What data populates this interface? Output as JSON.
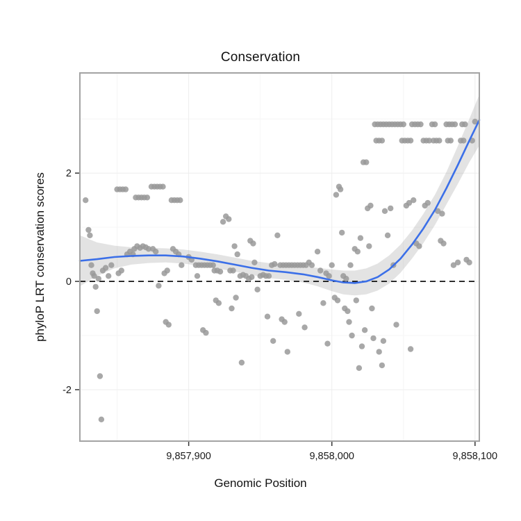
{
  "chart_data": {
    "type": "scatter",
    "title": "Conservation",
    "xlabel": "Genomic Position",
    "ylabel": "phyloP LRT conservation scores",
    "x_domain": [
      9857824,
      9858103
    ],
    "y_domain": [
      -2.95,
      3.85
    ],
    "x_ticks": [
      {
        "value": 9857900,
        "label": "9,857,900"
      },
      {
        "value": 9858000,
        "label": "9,858,000"
      },
      {
        "value": 9858100,
        "label": "9,858,100"
      }
    ],
    "y_ticks": [
      {
        "value": -2,
        "label": "-2"
      },
      {
        "value": 0,
        "label": "0"
      },
      {
        "value": 2,
        "label": "2"
      }
    ],
    "x_minor": [
      9857850,
      9857950,
      9858050
    ],
    "y_minor": [
      -1,
      1,
      3
    ],
    "zero_line_y": 0,
    "style": {
      "panel_fill": "#ffffff",
      "panel_border": "#a3a3a3",
      "grid_major": "#ededed",
      "grid_minor": "#f6f6f6",
      "point_color": "#999999",
      "line_color": "#3b6fe8",
      "band_color": "#9b9b9b",
      "zero_line_color": "#000000",
      "tick_color": "#333333"
    },
    "points": [
      [
        9857828,
        1.5
      ],
      [
        9857830,
        0.95
      ],
      [
        9857831,
        0.85
      ],
      [
        9857832,
        0.3
      ],
      [
        9857833,
        0.15
      ],
      [
        9857834,
        0.1
      ],
      [
        9857835,
        -0.1
      ],
      [
        9857836,
        -0.55
      ],
      [
        9857837,
        0.05
      ],
      [
        9857838,
        -1.75
      ],
      [
        9857839,
        -2.55
      ],
      [
        9857840,
        0.2
      ],
      [
        9857842,
        0.25
      ],
      [
        9857844,
        0.1
      ],
      [
        9857846,
        0.3
      ],
      [
        9857850,
        1.7
      ],
      [
        9857852,
        1.7
      ],
      [
        9857854,
        1.7
      ],
      [
        9857856,
        1.7
      ],
      [
        9857851,
        0.15
      ],
      [
        9857853,
        0.2
      ],
      [
        9857857,
        0.5
      ],
      [
        9857859,
        0.55
      ],
      [
        9857861,
        0.5
      ],
      [
        9857862,
        0.6
      ],
      [
        9857864,
        0.65
      ],
      [
        9857866,
        0.62
      ],
      [
        9857868,
        0.65
      ],
      [
        9857870,
        0.63
      ],
      [
        9857872,
        0.6
      ],
      [
        9857863,
        1.55
      ],
      [
        9857865,
        1.55
      ],
      [
        9857867,
        1.55
      ],
      [
        9857869,
        1.55
      ],
      [
        9857871,
        1.55
      ],
      [
        9857874,
        1.75
      ],
      [
        9857876,
        1.75
      ],
      [
        9857878,
        1.75
      ],
      [
        9857880,
        1.75
      ],
      [
        9857882,
        1.75
      ],
      [
        9857875,
        0.6
      ],
      [
        9857877,
        0.55
      ],
      [
        9857879,
        -0.08
      ],
      [
        9857883,
        0.15
      ],
      [
        9857885,
        0.2
      ],
      [
        9857884,
        -0.75
      ],
      [
        9857886,
        -0.8
      ],
      [
        9857888,
        1.5
      ],
      [
        9857890,
        1.5
      ],
      [
        9857892,
        1.5
      ],
      [
        9857894,
        1.5
      ],
      [
        9857889,
        0.6
      ],
      [
        9857891,
        0.55
      ],
      [
        9857893,
        0.5
      ],
      [
        9857895,
        0.3
      ],
      [
        9857900,
        0.45
      ],
      [
        9857902,
        0.4
      ],
      [
        9857905,
        0.3
      ],
      [
        9857907,
        0.3
      ],
      [
        9857909,
        0.3
      ],
      [
        9857911,
        0.3
      ],
      [
        9857913,
        0.3
      ],
      [
        9857915,
        0.3
      ],
      [
        9857917,
        0.3
      ],
      [
        9857906,
        0.1
      ],
      [
        9857910,
        -0.9
      ],
      [
        9857912,
        -0.95
      ],
      [
        9857918,
        0.2
      ],
      [
        9857920,
        0.2
      ],
      [
        9857922,
        0.18
      ],
      [
        9857919,
        -0.35
      ],
      [
        9857921,
        -0.4
      ],
      [
        9857924,
        1.1
      ],
      [
        9857926,
        1.2
      ],
      [
        9857928,
        1.15
      ],
      [
        9857929,
        0.2
      ],
      [
        9857931,
        0.2
      ],
      [
        9857930,
        -0.5
      ],
      [
        9857932,
        0.65
      ],
      [
        9857934,
        0.5
      ],
      [
        9857933,
        -0.3
      ],
      [
        9857936,
        0.1
      ],
      [
        9857938,
        0.12
      ],
      [
        9857940,
        0.1
      ],
      [
        9857937,
        -1.5
      ],
      [
        9857942,
        0.05
      ],
      [
        9857944,
        0.08
      ],
      [
        9857943,
        0.75
      ],
      [
        9857945,
        0.7
      ],
      [
        9857946,
        0.35
      ],
      [
        9857948,
        -0.15
      ],
      [
        9857950,
        0.1
      ],
      [
        9857952,
        0.12
      ],
      [
        9857954,
        0.1
      ],
      [
        9857956,
        0.1
      ],
      [
        9857955,
        -0.65
      ],
      [
        9857958,
        0.3
      ],
      [
        9857960,
        0.32
      ],
      [
        9857959,
        -1.1
      ],
      [
        9857962,
        0.85
      ],
      [
        9857964,
        0.3
      ],
      [
        9857966,
        0.3
      ],
      [
        9857968,
        0.3
      ],
      [
        9857970,
        0.3
      ],
      [
        9857972,
        0.3
      ],
      [
        9857974,
        0.3
      ],
      [
        9857976,
        0.3
      ],
      [
        9857978,
        0.3
      ],
      [
        9857980,
        0.3
      ],
      [
        9857982,
        0.3
      ],
      [
        9857965,
        -0.7
      ],
      [
        9857967,
        -0.75
      ],
      [
        9857969,
        -1.3
      ],
      [
        9857977,
        -0.6
      ],
      [
        9857981,
        -0.85
      ],
      [
        9857984,
        0.35
      ],
      [
        9857986,
        0.3
      ],
      [
        9857990,
        0.55
      ],
      [
        9857992,
        0.2
      ],
      [
        9857994,
        -0.4
      ],
      [
        9857996,
        0.15
      ],
      [
        9857998,
        0.1
      ],
      [
        9857997,
        -1.15
      ],
      [
        9858000,
        0.3
      ],
      [
        9858002,
        -0.3
      ],
      [
        9858004,
        -0.35
      ],
      [
        9858003,
        1.6
      ],
      [
        9858005,
        1.75
      ],
      [
        9858006,
        1.7
      ],
      [
        9858007,
        0.9
      ],
      [
        9858008,
        0.1
      ],
      [
        9858010,
        0.05
      ],
      [
        9858009,
        -0.5
      ],
      [
        9858011,
        -0.55
      ],
      [
        9858012,
        -0.75
      ],
      [
        9858013,
        0.3
      ],
      [
        9858014,
        -1.0
      ],
      [
        9858016,
        0.6
      ],
      [
        9858018,
        0.55
      ],
      [
        9858017,
        -0.35
      ],
      [
        9858019,
        -1.6
      ],
      [
        9858020,
        0.8
      ],
      [
        9858021,
        -1.2
      ],
      [
        9858022,
        2.2
      ],
      [
        9858024,
        2.2
      ],
      [
        9858023,
        -0.9
      ],
      [
        9858025,
        1.35
      ],
      [
        9858027,
        1.4
      ],
      [
        9858026,
        0.65
      ],
      [
        9858028,
        -0.5
      ],
      [
        9858029,
        -1.05
      ],
      [
        9858030,
        2.9
      ],
      [
        9858032,
        2.9
      ],
      [
        9858034,
        2.9
      ],
      [
        9858036,
        2.9
      ],
      [
        9858038,
        2.9
      ],
      [
        9858040,
        2.9
      ],
      [
        9858042,
        2.9
      ],
      [
        9858044,
        2.9
      ],
      [
        9858046,
        2.9
      ],
      [
        9858031,
        2.6
      ],
      [
        9858033,
        2.6
      ],
      [
        9858035,
        2.6
      ],
      [
        9858033,
        -1.3
      ],
      [
        9858035,
        -1.55
      ],
      [
        9858036,
        -1.1
      ],
      [
        9858037,
        1.3
      ],
      [
        9858039,
        0.85
      ],
      [
        9858041,
        1.35
      ],
      [
        9858043,
        0.3
      ],
      [
        9858045,
        -0.8
      ],
      [
        9858048,
        2.9
      ],
      [
        9858050,
        2.9
      ],
      [
        9858049,
        2.6
      ],
      [
        9858051,
        2.6
      ],
      [
        9858053,
        2.6
      ],
      [
        9858055,
        2.6
      ],
      [
        9858052,
        1.4
      ],
      [
        9858054,
        1.45
      ],
      [
        9858055,
        -1.25
      ],
      [
        9858056,
        2.9
      ],
      [
        9858058,
        2.9
      ],
      [
        9858060,
        2.9
      ],
      [
        9858062,
        2.9
      ],
      [
        9858057,
        1.5
      ],
      [
        9858059,
        0.7
      ],
      [
        9858061,
        0.65
      ],
      [
        9858064,
        2.6
      ],
      [
        9858066,
        2.6
      ],
      [
        9858068,
        2.6
      ],
      [
        9858065,
        1.4
      ],
      [
        9858067,
        1.45
      ],
      [
        9858070,
        2.9
      ],
      [
        9858072,
        2.9
      ],
      [
        9858071,
        2.6
      ],
      [
        9858073,
        2.6
      ],
      [
        9858075,
        2.6
      ],
      [
        9858074,
        1.3
      ],
      [
        9858076,
        0.75
      ],
      [
        9858078,
        0.7
      ],
      [
        9858077,
        1.25
      ],
      [
        9858080,
        2.9
      ],
      [
        9858082,
        2.9
      ],
      [
        9858084,
        2.9
      ],
      [
        9858086,
        2.9
      ],
      [
        9858081,
        2.6
      ],
      [
        9858083,
        2.6
      ],
      [
        9858085,
        0.3
      ],
      [
        9858088,
        0.35
      ],
      [
        9858090,
        2.6
      ],
      [
        9858092,
        2.6
      ],
      [
        9858091,
        2.9
      ],
      [
        9858093,
        2.9
      ],
      [
        9858094,
        0.4
      ],
      [
        9858096,
        0.35
      ],
      [
        9858098,
        2.6
      ],
      [
        9858100,
        2.95
      ]
    ],
    "smooth_line": {
      "x": [
        9857824,
        9857836,
        9857848,
        9857860,
        9857872,
        9857884,
        9857896,
        9857908,
        9857920,
        9857932,
        9857944,
        9857956,
        9857968,
        9857980,
        9857990,
        9858000,
        9858008,
        9858016,
        9858024,
        9858032,
        9858040,
        9858048,
        9858056,
        9858064,
        9858072,
        9858080,
        9858088,
        9858096,
        9858103
      ],
      "y": [
        0.38,
        0.41,
        0.45,
        0.47,
        0.48,
        0.48,
        0.46,
        0.42,
        0.37,
        0.31,
        0.25,
        0.2,
        0.17,
        0.13,
        0.08,
        0.02,
        -0.02,
        -0.03,
        0.0,
        0.08,
        0.22,
        0.42,
        0.68,
        0.98,
        1.32,
        1.72,
        2.15,
        2.6,
        2.98
      ]
    },
    "confidence_band": {
      "x": [
        9857824,
        9857836,
        9857848,
        9857860,
        9857872,
        9857884,
        9857896,
        9857908,
        9857920,
        9857932,
        9857944,
        9857956,
        9857968,
        9857980,
        9857990,
        9858000,
        9858008,
        9858016,
        9858024,
        9858032,
        9858040,
        9858048,
        9858056,
        9858064,
        9858072,
        9858080,
        9858088,
        9858096,
        9858103
      ],
      "upper": [
        0.85,
        0.72,
        0.66,
        0.63,
        0.62,
        0.61,
        0.59,
        0.55,
        0.5,
        0.44,
        0.38,
        0.34,
        0.31,
        0.28,
        0.25,
        0.22,
        0.2,
        0.2,
        0.24,
        0.33,
        0.48,
        0.68,
        0.94,
        1.25,
        1.6,
        2.02,
        2.5,
        3.0,
        3.45
      ],
      "lower": [
        -0.09,
        0.1,
        0.24,
        0.31,
        0.34,
        0.35,
        0.33,
        0.29,
        0.24,
        0.18,
        0.12,
        0.06,
        0.03,
        -0.02,
        -0.09,
        -0.18,
        -0.24,
        -0.26,
        -0.24,
        -0.17,
        -0.04,
        0.16,
        0.42,
        0.71,
        1.04,
        1.42,
        1.8,
        2.2,
        2.51
      ]
    }
  }
}
